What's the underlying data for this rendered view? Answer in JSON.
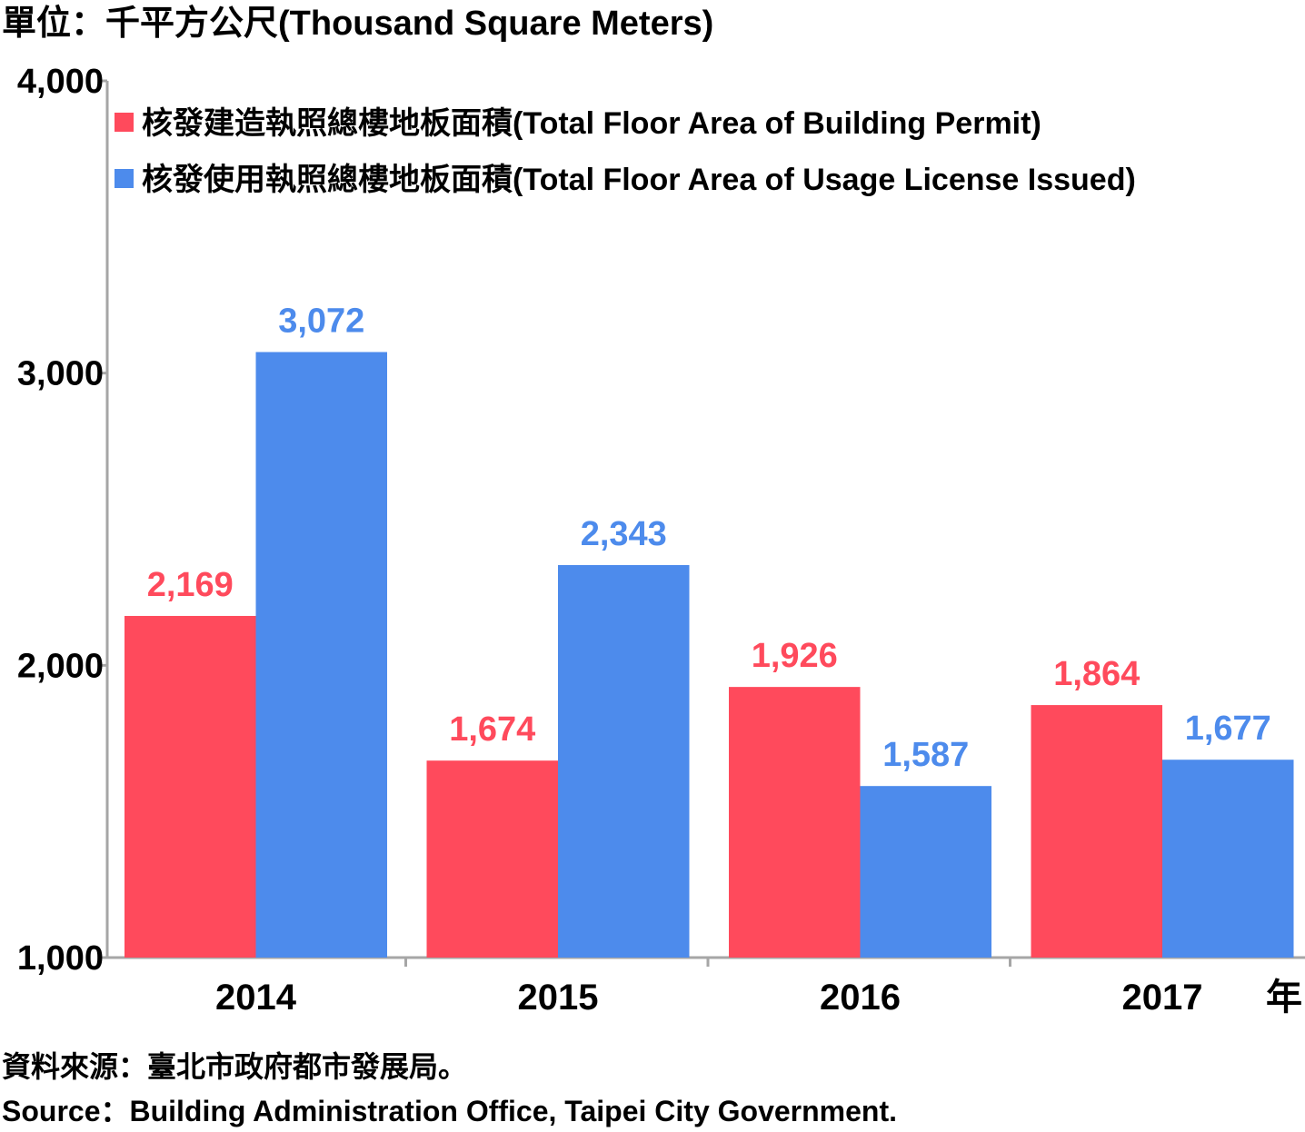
{
  "unit_label": "單位：千平方公尺(Thousand Square Meters)",
  "x_unit_label": "年",
  "source_zh": "資料來源：臺北市政府都市發展局。",
  "source_en": "Source：Building Administration Office, Taipei City Government.",
  "colors": {
    "permit": "#ff4a5c",
    "usage": "#4d8bec",
    "axis": "#a6a6a6"
  },
  "chart_data": {
    "type": "bar",
    "categories": [
      "2014",
      "2015",
      "2016",
      "2017"
    ],
    "series": [
      {
        "name": "核發建造執照總樓地板面積(Total Floor Area of Building Permit)",
        "values": [
          2169,
          1674,
          1926,
          1864
        ]
      },
      {
        "name": "核發使用執照總樓地板面積(Total Floor Area of Usage License Issued)",
        "values": [
          3072,
          2343,
          1587,
          1677
        ]
      }
    ],
    "value_labels": [
      [
        "2,169",
        "1,674",
        "1,926",
        "1,864"
      ],
      [
        "3,072",
        "2,343",
        "1,587",
        "1,677"
      ]
    ],
    "ylim": [
      1000,
      4000
    ],
    "yticks": [
      1000,
      2000,
      3000,
      4000
    ],
    "ytick_labels": [
      "1,000",
      "2,000",
      "3,000",
      "4,000"
    ],
    "legend_position": "top-left",
    "grid": false
  }
}
